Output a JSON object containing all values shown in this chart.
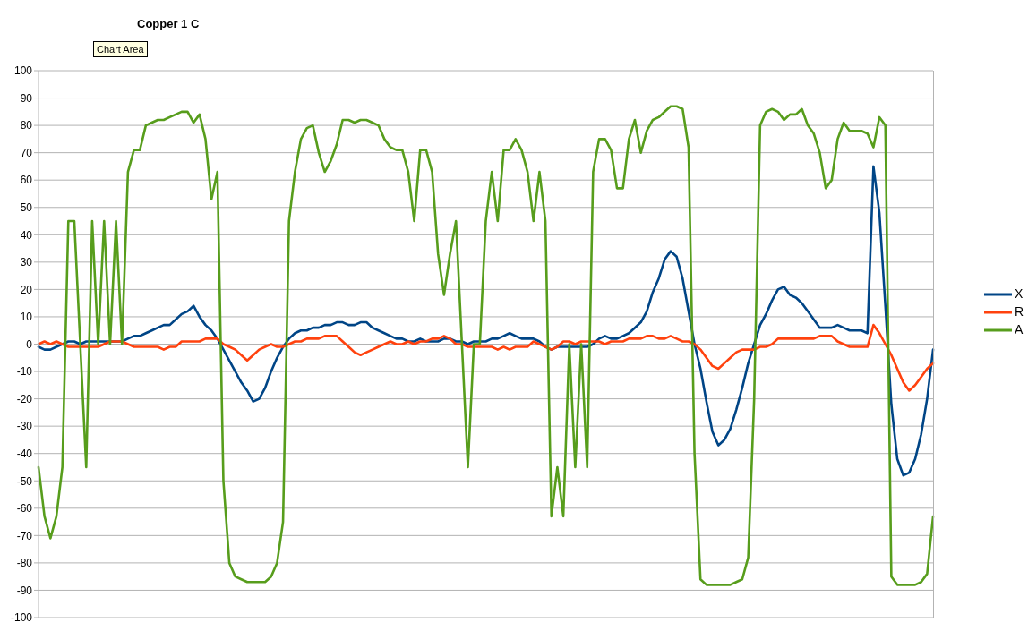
{
  "chart_data": {
    "type": "line",
    "title": "Copper 1 C",
    "annotations": [
      "Chart Area"
    ],
    "categories": [
      null,
      null,
      null,
      null,
      null,
      null,
      null,
      null,
      null,
      null,
      null,
      null,
      null,
      null,
      null,
      null,
      null,
      null,
      null,
      null,
      null,
      null,
      null,
      null,
      null,
      null,
      null,
      null,
      null,
      null,
      null,
      null,
      null,
      null,
      null,
      null,
      null,
      null,
      null,
      null,
      null,
      null,
      null,
      null,
      null,
      null,
      null,
      null,
      null,
      null,
      null,
      null,
      null,
      null,
      null,
      null,
      null,
      null,
      null,
      null,
      null,
      null,
      null,
      null,
      null,
      null,
      null,
      null,
      null,
      null,
      null,
      null,
      null,
      null,
      null,
      null,
      null,
      null,
      null,
      null,
      null,
      null,
      null,
      null,
      null,
      null,
      null,
      null,
      null,
      null,
      null,
      null,
      null,
      null,
      null,
      null,
      null,
      null,
      null,
      null,
      null,
      null,
      null,
      null,
      null,
      null,
      null,
      null,
      null,
      null,
      null,
      null,
      null,
      null,
      null,
      null,
      null,
      null,
      null,
      null,
      null,
      null,
      null,
      null,
      null,
      null,
      null,
      null,
      null,
      null,
      null,
      null,
      null,
      null,
      null,
      null,
      null,
      null,
      null,
      null,
      null,
      null,
      null,
      null,
      null,
      null,
      null,
      null,
      null,
      null,
      null
    ],
    "series": [
      {
        "name": "X",
        "color": "#004586",
        "values": [
          -1,
          -2,
          -2,
          -1,
          0,
          1,
          1,
          0,
          1,
          1,
          1,
          1,
          1,
          1,
          1,
          2,
          3,
          3,
          4,
          5,
          6,
          7,
          7,
          9,
          11,
          12,
          14,
          10,
          7,
          5,
          2,
          -2,
          -6,
          -10,
          -14,
          -17,
          -21,
          -20,
          -16,
          -10,
          -5,
          -1,
          2,
          4,
          5,
          5,
          6,
          6,
          7,
          7,
          8,
          8,
          7,
          7,
          8,
          8,
          6,
          5,
          4,
          3,
          2,
          2,
          1,
          1,
          2,
          1,
          1,
          1,
          2,
          2,
          1,
          1,
          0,
          1,
          1,
          1,
          2,
          2,
          3,
          4,
          3,
          2,
          2,
          2,
          1,
          -1,
          -2,
          -1,
          -1,
          -1,
          -1,
          -1,
          -1,
          0,
          2,
          3,
          2,
          2,
          3,
          4,
          6,
          8,
          12,
          19,
          24,
          31,
          34,
          32,
          24,
          12,
          0,
          -9,
          -21,
          -32,
          -37,
          -35,
          -31,
          -24,
          -16,
          -7,
          0,
          7,
          11,
          16,
          20,
          21,
          18,
          17,
          15,
          12,
          9,
          6,
          6,
          6,
          7,
          6,
          5,
          5,
          5,
          4,
          65,
          48,
          14,
          -22,
          -42,
          -48,
          -47,
          -42,
          -33,
          -20,
          -2
        ]
      },
      {
        "name": "R",
        "color": "#ff420e",
        "values": [
          0,
          1,
          0,
          1,
          0,
          -1,
          -1,
          -1,
          -1,
          -1,
          -1,
          0,
          1,
          1,
          1,
          0,
          -1,
          -1,
          -1,
          -1,
          -1,
          -2,
          -1,
          -1,
          1,
          1,
          1,
          1,
          2,
          2,
          2,
          0,
          -1,
          -2,
          -4,
          -6,
          -4,
          -2,
          -1,
          0,
          -1,
          -1,
          0,
          1,
          1,
          2,
          2,
          2,
          3,
          3,
          3,
          1,
          -1,
          -3,
          -4,
          -3,
          -2,
          -1,
          0,
          1,
          0,
          0,
          1,
          0,
          1,
          1,
          2,
          2,
          3,
          2,
          0,
          0,
          -1,
          -1,
          -1,
          -1,
          -1,
          -2,
          -1,
          -2,
          -1,
          -1,
          -1,
          1,
          0,
          -1,
          -2,
          -1,
          1,
          1,
          0,
          1,
          1,
          1,
          1,
          0,
          1,
          1,
          1,
          2,
          2,
          2,
          3,
          3,
          2,
          2,
          3,
          2,
          1,
          1,
          0,
          -2,
          -5,
          -8,
          -9,
          -7,
          -5,
          -3,
          -2,
          -2,
          -2,
          -1,
          -1,
          0,
          2,
          2,
          2,
          2,
          2,
          2,
          2,
          3,
          3,
          3,
          1,
          0,
          -1,
          -1,
          -1,
          -1,
          7,
          4,
          0,
          -4,
          -9,
          -14,
          -17,
          -15,
          -12,
          -9,
          -7
        ]
      },
      {
        "name": "A",
        "color": "#579d1c",
        "values": [
          -45,
          -63,
          -71,
          -63,
          -45,
          45,
          45,
          0,
          -45,
          45,
          0,
          45,
          0,
          45,
          0,
          63,
          71,
          71,
          80,
          81,
          82,
          82,
          83,
          84,
          85,
          85,
          81,
          84,
          75,
          53,
          63,
          -50,
          -80,
          -85,
          -86,
          -87,
          -87,
          -87,
          -87,
          -85,
          -80,
          -65,
          45,
          63,
          75,
          79,
          80,
          70,
          63,
          67,
          73,
          82,
          82,
          81,
          82,
          82,
          81,
          80,
          75,
          72,
          71,
          71,
          63,
          45,
          71,
          71,
          63,
          33,
          18,
          33,
          45,
          0,
          -45,
          0,
          0,
          45,
          63,
          45,
          71,
          71,
          75,
          71,
          63,
          45,
          63,
          45,
          -63,
          -45,
          -63,
          0,
          -45,
          0,
          -45,
          63,
          75,
          75,
          71,
          57,
          57,
          75,
          82,
          70,
          78,
          82,
          83,
          85,
          87,
          87,
          86,
          72,
          -40,
          -86,
          -88,
          -88,
          -88,
          -88,
          -88,
          -87,
          -86,
          -78,
          -20,
          80,
          85,
          86,
          85,
          82,
          84,
          84,
          86,
          80,
          77,
          70,
          57,
          60,
          75,
          81,
          78,
          78,
          78,
          77,
          72,
          83,
          80,
          -85,
          -88,
          -88,
          -88,
          -88,
          -87,
          -84,
          -63
        ]
      }
    ],
    "ylim": [
      -100,
      100
    ],
    "yticks": [
      -100,
      -90,
      -80,
      -70,
      -60,
      -50,
      -40,
      -30,
      -20,
      -10,
      0,
      10,
      20,
      30,
      40,
      50,
      60,
      70,
      80,
      90,
      100
    ],
    "grid": "y",
    "legend": "right",
    "marker": "none",
    "line_style": "solid",
    "tick_labels": "y"
  }
}
